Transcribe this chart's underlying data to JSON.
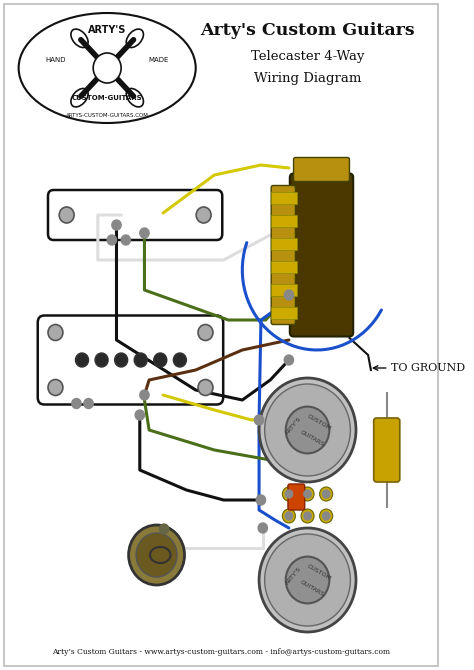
{
  "title1": "Arty's Custom Guitars",
  "title2": "Telecaster 4-Way",
  "title3": "Wiring Diagram",
  "footer": "Arty’s Custom Guitars - www.artys-custom-guitars.com - info@artys-custom-guitars.com",
  "to_ground_label": "TO GROUND",
  "bg_color": "#ffffff",
  "title_color": "#111111",
  "wire_yellow": "#d4c800",
  "wire_green": "#4a6e1a",
  "wire_white": "#dddddd",
  "wire_black": "#111111",
  "wire_blue": "#1a50cc",
  "wire_brown": "#5a3010",
  "node_color": "#888888",
  "pot_face": "#aaaaaa",
  "pot_edge": "#444444",
  "pot_inner": "#888888",
  "switch_gold": "#b89010",
  "switch_dark": "#4a3800",
  "cap_gold": "#c8a200",
  "cap_orange": "#cc4400",
  "jack_brass": "#8a7830",
  "lw": 2.2
}
